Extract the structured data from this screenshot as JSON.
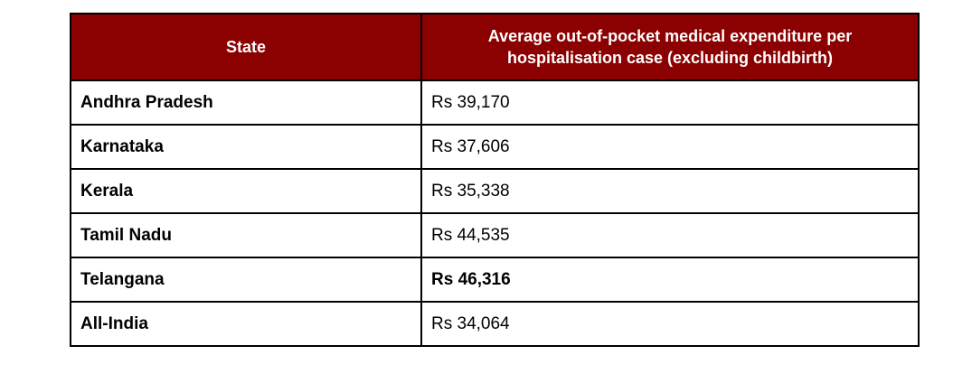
{
  "table": {
    "headers": [
      "State",
      "Average out-of-pocket medical expenditure per hospitalisation case (excluding childbirth)"
    ],
    "rows": [
      {
        "state": "Andhra Pradesh",
        "value": "Rs 39,170",
        "bold": false
      },
      {
        "state": "Karnataka",
        "value": "Rs 37,606",
        "bold": false
      },
      {
        "state": "Kerala",
        "value": "Rs 35,338",
        "bold": false
      },
      {
        "state": "Tamil Nadu",
        "value": "Rs 44,535",
        "bold": false
      },
      {
        "state": "Telangana",
        "value": "Rs 46,316",
        "bold": true
      },
      {
        "state": "All-India",
        "value": "Rs 34,064",
        "bold": false
      }
    ]
  },
  "colors": {
    "header_background": "#8b0000",
    "header_text": "#ffffff",
    "border": "#000000"
  }
}
